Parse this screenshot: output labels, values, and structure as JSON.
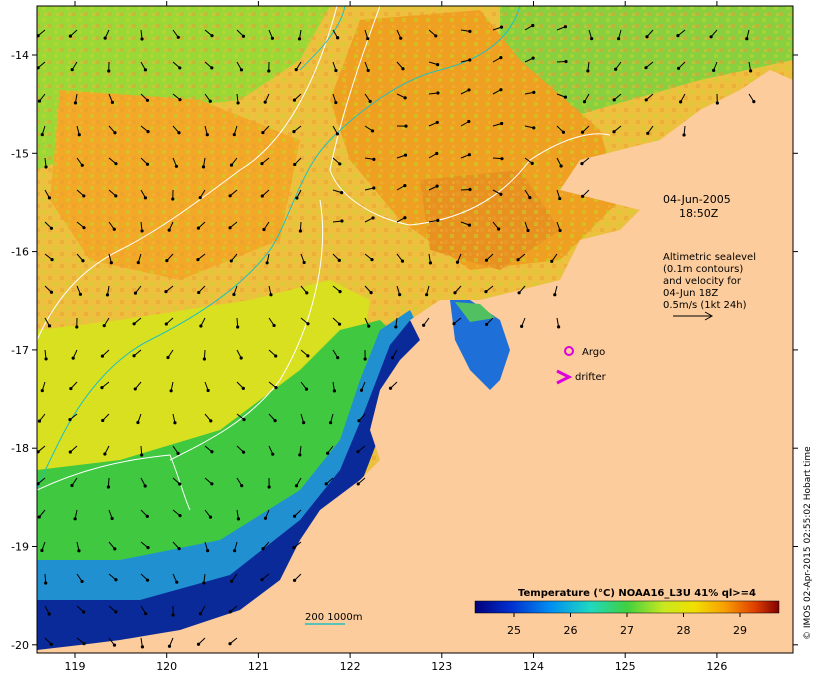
{
  "map": {
    "lon_ticks": [
      "119",
      "120",
      "121",
      "122",
      "123",
      "124",
      "125",
      "126"
    ],
    "lat_ticks": [
      "-14",
      "-15",
      "-16",
      "-17",
      "-18",
      "-19",
      "-20"
    ],
    "timestamp_date": "04-Jun-2005",
    "timestamp_time": "18:50Z",
    "altimetry_note": [
      "Altimetric sealevel",
      "(0.1m contours)",
      "and velocity for",
      "04-Jun 18Z",
      "0.5m/s (1kt 24h)"
    ],
    "argo_label": "Argo",
    "drifter_label": "drifter",
    "depth_label": "200  1000m",
    "colorbar_title": "Temperature (°C) NOAA16_L3U 41% ql>=4",
    "colorbar_ticks": [
      "25",
      "26",
      "27",
      "28",
      "29"
    ],
    "credit": "© IMOS 02-Apr-2015 02:55:02 Hobart time"
  },
  "colors": {
    "land": "#fccc9c",
    "argo": "#dd00dd",
    "drifter": "#dd00dd",
    "depth_contour": "#20c0c0",
    "sst_warm": "#f0a020",
    "sst_mid": "#d8e020",
    "sst_green": "#40c840",
    "sst_cold": "#0a2a9a"
  }
}
